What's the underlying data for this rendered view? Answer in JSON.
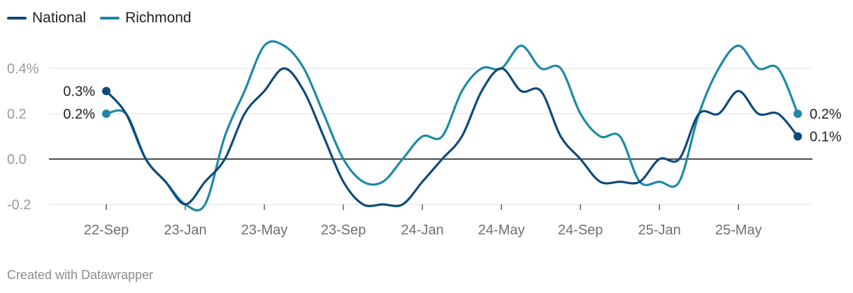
{
  "chart_data": {
    "type": "line",
    "title": "",
    "xlabel": "",
    "ylabel": "",
    "ylim": [
      -0.2,
      0.5
    ],
    "y_ticks": [
      {
        "value": 0.4,
        "label": "0.4%"
      },
      {
        "value": 0.2,
        "label": "0.2"
      },
      {
        "value": 0.0,
        "label": "0.0"
      },
      {
        "value": -0.2,
        "label": "-0.2"
      }
    ],
    "x_ticks": [
      {
        "index": 0,
        "label": "22-Sep"
      },
      {
        "index": 4,
        "label": "23-Jan"
      },
      {
        "index": 8,
        "label": "23-May"
      },
      {
        "index": 12,
        "label": "23-Sep"
      },
      {
        "index": 16,
        "label": "24-Jan"
      },
      {
        "index": 20,
        "label": "24-May"
      },
      {
        "index": 24,
        "label": "24-Sep"
      },
      {
        "index": 28,
        "label": "25-Jan"
      },
      {
        "index": 32,
        "label": "25-May"
      }
    ],
    "x": [
      "22-Sep",
      "22-Oct",
      "22-Nov",
      "22-Dec",
      "23-Jan",
      "23-Feb",
      "23-Mar",
      "23-Apr",
      "23-May",
      "23-Jun",
      "23-Jul",
      "23-Aug",
      "23-Sep",
      "23-Oct",
      "23-Nov",
      "23-Dec",
      "24-Jan",
      "24-Feb",
      "24-Mar",
      "24-Apr",
      "24-May",
      "24-Jun",
      "24-Jul",
      "24-Aug",
      "24-Sep",
      "24-Oct",
      "24-Nov",
      "24-Dec",
      "25-Jan",
      "25-Feb",
      "25-Mar",
      "25-Apr",
      "25-May",
      "25-Jun",
      "25-Jul",
      "25-Aug"
    ],
    "series": [
      {
        "name": "National",
        "color": "#0e4a7b",
        "values": [
          0.3,
          0.2,
          0.0,
          -0.1,
          -0.2,
          -0.1,
          0.0,
          0.2,
          0.3,
          0.4,
          0.3,
          0.1,
          -0.1,
          -0.2,
          -0.2,
          -0.2,
          -0.1,
          0.0,
          0.1,
          0.3,
          0.4,
          0.3,
          0.3,
          0.1,
          0.0,
          -0.1,
          -0.1,
          -0.1,
          0.0,
          0.0,
          0.2,
          0.2,
          0.3,
          0.2,
          0.2,
          0.1
        ],
        "end_label": "0.1%",
        "start_label": "0.3%"
      },
      {
        "name": "Richmond",
        "color": "#1d89a6",
        "values": [
          0.2,
          0.2,
          0.0,
          -0.1,
          -0.2,
          -0.2,
          0.1,
          0.3,
          0.5,
          0.5,
          0.4,
          0.2,
          0.0,
          -0.1,
          -0.1,
          0.0,
          0.1,
          0.1,
          0.3,
          0.4,
          0.4,
          0.5,
          0.4,
          0.4,
          0.2,
          0.1,
          0.1,
          -0.1,
          -0.1,
          -0.1,
          0.2,
          0.4,
          0.5,
          0.4,
          0.4,
          0.2
        ],
        "end_label": "0.2%",
        "start_label": "0.2%"
      }
    ],
    "legend": "top-left"
  },
  "credit": "Created with Datawrapper"
}
